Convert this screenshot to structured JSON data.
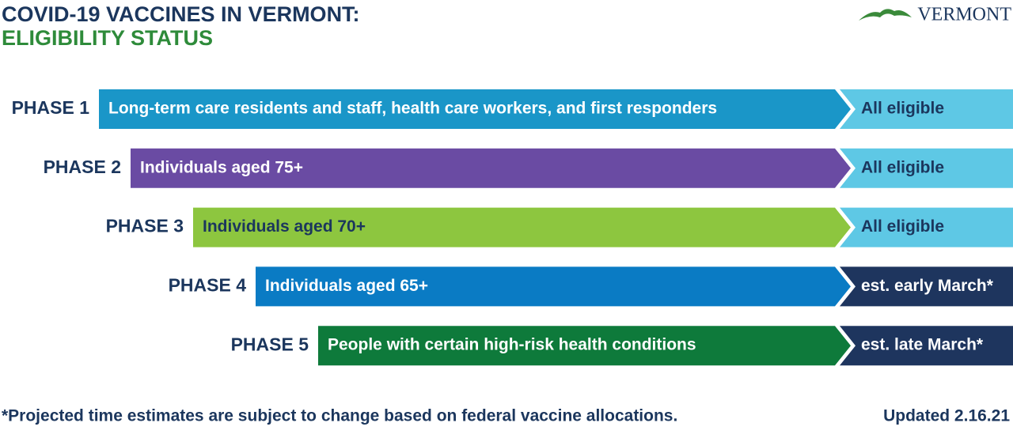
{
  "header": {
    "title_line1": "COVID-19 VACCINES IN VERMONT:",
    "title_line2": "ELIGIBILITY STATUS",
    "logo": "VERMONT"
  },
  "phases": [
    {
      "label": "PHASE 1",
      "description": "Long-term care residents and staff, health care workers, and first responders",
      "status": "All eligible",
      "bar_color": "#1a96c8",
      "text_color": "#ffffff",
      "status_color": "#5ec8e5",
      "status_text_color": "#1b365d"
    },
    {
      "label": "PHASE 2",
      "description": "Individuals aged 75+",
      "status": "All eligible",
      "bar_color": "#6a4ba3",
      "text_color": "#ffffff",
      "status_color": "#5ec8e5",
      "status_text_color": "#1b365d"
    },
    {
      "label": "PHASE 3",
      "description": "Individuals aged 70+",
      "status": "All eligible",
      "bar_color": "#8dc63f",
      "text_color": "#1b365d",
      "status_color": "#5ec8e5",
      "status_text_color": "#1b365d"
    },
    {
      "label": "PHASE 4",
      "description": "Individuals aged 65+",
      "status": "est. early March*",
      "bar_color": "#0a7bc4",
      "text_color": "#ffffff",
      "status_color": "#1e355e",
      "status_text_color": "#ffffff"
    },
    {
      "label": "PHASE 5",
      "description": "People with certain high-risk health conditions",
      "status": "est. late March*",
      "bar_color": "#0e7a3b",
      "text_color": "#ffffff",
      "status_color": "#1e355e",
      "status_text_color": "#ffffff"
    }
  ],
  "footer": {
    "note": "*Projected time estimates are subject to change based on federal vaccine allocations.",
    "updated": "Updated 2.16.21"
  }
}
